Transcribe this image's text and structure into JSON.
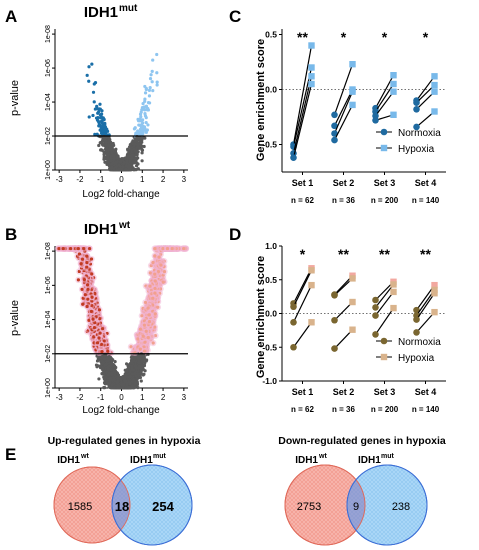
{
  "panel_letters": [
    "A",
    "B",
    "C",
    "D",
    "E"
  ],
  "chart_data": [
    {
      "id": "A",
      "type": "scatter",
      "title": "IDH1",
      "title_sup": "mut",
      "xlabel": "Log2 fold-change",
      "ylabel": "p-value",
      "x_ticks": [
        "-3",
        "-2",
        "-1",
        "0",
        "1",
        "2",
        "3"
      ],
      "y_ticks": [
        "1e+00",
        "1e-02",
        "1e-04",
        "1e-06",
        "1e-08"
      ],
      "xlim": [
        -3.2,
        3.2
      ],
      "ylim_neglog10": [
        0,
        8.3
      ],
      "threshold_line_neglog10": 2,
      "n_points": 1500,
      "colors": {
        "nonsig": "#5a5a5a",
        "down": "#1a6fa8",
        "up": "#8ec5f0"
      }
    },
    {
      "id": "B",
      "type": "scatter",
      "title": "IDH1",
      "title_sup": "wt",
      "xlabel": "Log2 fold-change",
      "ylabel": "p-value",
      "x_ticks": [
        "-3",
        "-2",
        "-1",
        "0",
        "1",
        "2",
        "3"
      ],
      "y_ticks": [
        "1e+00",
        "1e-02",
        "1e-04",
        "1e-06",
        "1e-08"
      ],
      "xlim": [
        -3.2,
        3.2
      ],
      "ylim_neglog10": [
        0,
        8.3
      ],
      "threshold_line_neglog10": 2,
      "n_points": 4000,
      "colors": {
        "nonsig": "#5a5a5a",
        "down": "#c23a22",
        "up": "#f2a08e",
        "halo": "#f2b4d4",
        "edge": "#8b8b3a"
      }
    },
    {
      "id": "C",
      "type": "line",
      "ylabel": "Gene enrichment score",
      "categories": [
        "Set 1",
        "Set 2",
        "Set 3",
        "Set 4"
      ],
      "n_labels": [
        "n = 62",
        "n = 36",
        "n = 200",
        "n = 140"
      ],
      "ylim": [
        -0.75,
        0.55
      ],
      "y_ticks": [
        "-0.5",
        "0.0",
        "0.5"
      ],
      "y_tick_values": [
        -0.5,
        0.0,
        0.5
      ],
      "significance": [
        "**",
        "*",
        "*",
        "*"
      ],
      "legend": [
        "Normoxia",
        "Hypoxia"
      ],
      "colors": {
        "normoxia": "#1f6aa0",
        "hypoxia": "#78b9ea"
      },
      "pairs": [
        [
          [
            -0.5,
            0.4
          ],
          [
            -0.52,
            0.2
          ],
          [
            -0.58,
            0.12
          ],
          [
            -0.62,
            0.05
          ]
        ],
        [
          [
            -0.23,
            0.23
          ],
          [
            -0.33,
            0.0
          ],
          [
            -0.4,
            -0.02
          ],
          [
            -0.46,
            -0.14
          ]
        ],
        [
          [
            -0.17,
            0.13
          ],
          [
            -0.2,
            0.05
          ],
          [
            -0.24,
            -0.02
          ],
          [
            -0.28,
            -0.23
          ]
        ],
        [
          [
            -0.1,
            0.12
          ],
          [
            -0.12,
            0.04
          ],
          [
            -0.18,
            -0.02
          ],
          [
            -0.34,
            -0.2
          ]
        ]
      ]
    },
    {
      "id": "D",
      "type": "line",
      "ylabel": "Gene enrichment score",
      "categories": [
        "Set 1",
        "Set 2",
        "Set 3",
        "Set 4"
      ],
      "n_labels": [
        "n = 62",
        "n = 36",
        "n = 200",
        "n = 140"
      ],
      "ylim": [
        -1.0,
        1.0
      ],
      "y_ticks": [
        "-1.0",
        "-0.5",
        "0.0",
        "0.5",
        "1.0"
      ],
      "y_tick_values": [
        -1.0,
        -0.5,
        0.0,
        0.5,
        1.0
      ],
      "significance": [
        "*",
        "**",
        "**",
        "**"
      ],
      "legend": [
        "Normoxia",
        "Hypoxia"
      ],
      "colors": {
        "normoxia": "#7a6630",
        "hypoxia": "#d9b38c",
        "hypoxia_highlight": "#f2a8a0"
      },
      "pairs": [
        [
          [
            0.15,
            0.67
          ],
          [
            0.1,
            0.64
          ],
          [
            -0.13,
            0.42
          ],
          [
            -0.5,
            -0.13
          ]
        ],
        [
          [
            0.28,
            0.56
          ],
          [
            0.27,
            0.52
          ],
          [
            -0.1,
            0.17
          ],
          [
            -0.52,
            -0.24
          ]
        ],
        [
          [
            0.2,
            0.47
          ],
          [
            0.09,
            0.43
          ],
          [
            -0.03,
            0.32
          ],
          [
            -0.31,
            0.08
          ]
        ],
        [
          [
            0.05,
            0.42
          ],
          [
            -0.03,
            0.35
          ],
          [
            -0.09,
            0.3
          ],
          [
            -0.28,
            0.02
          ]
        ]
      ]
    }
  ],
  "venns": [
    {
      "title": "Up-regulated genes in hypoxia",
      "left_label": "IDH1",
      "left_sup": "wt",
      "right_label": "IDH1",
      "right_sup": "mut",
      "left_only": "1585",
      "overlap": "18",
      "right_only": "254"
    },
    {
      "title": "Down-regulated genes in hypoxia",
      "left_label": "IDH1",
      "left_sup": "wt",
      "right_label": "IDH1",
      "right_sup": "mut",
      "left_only": "2753",
      "overlap": "9",
      "right_only": "238"
    }
  ]
}
